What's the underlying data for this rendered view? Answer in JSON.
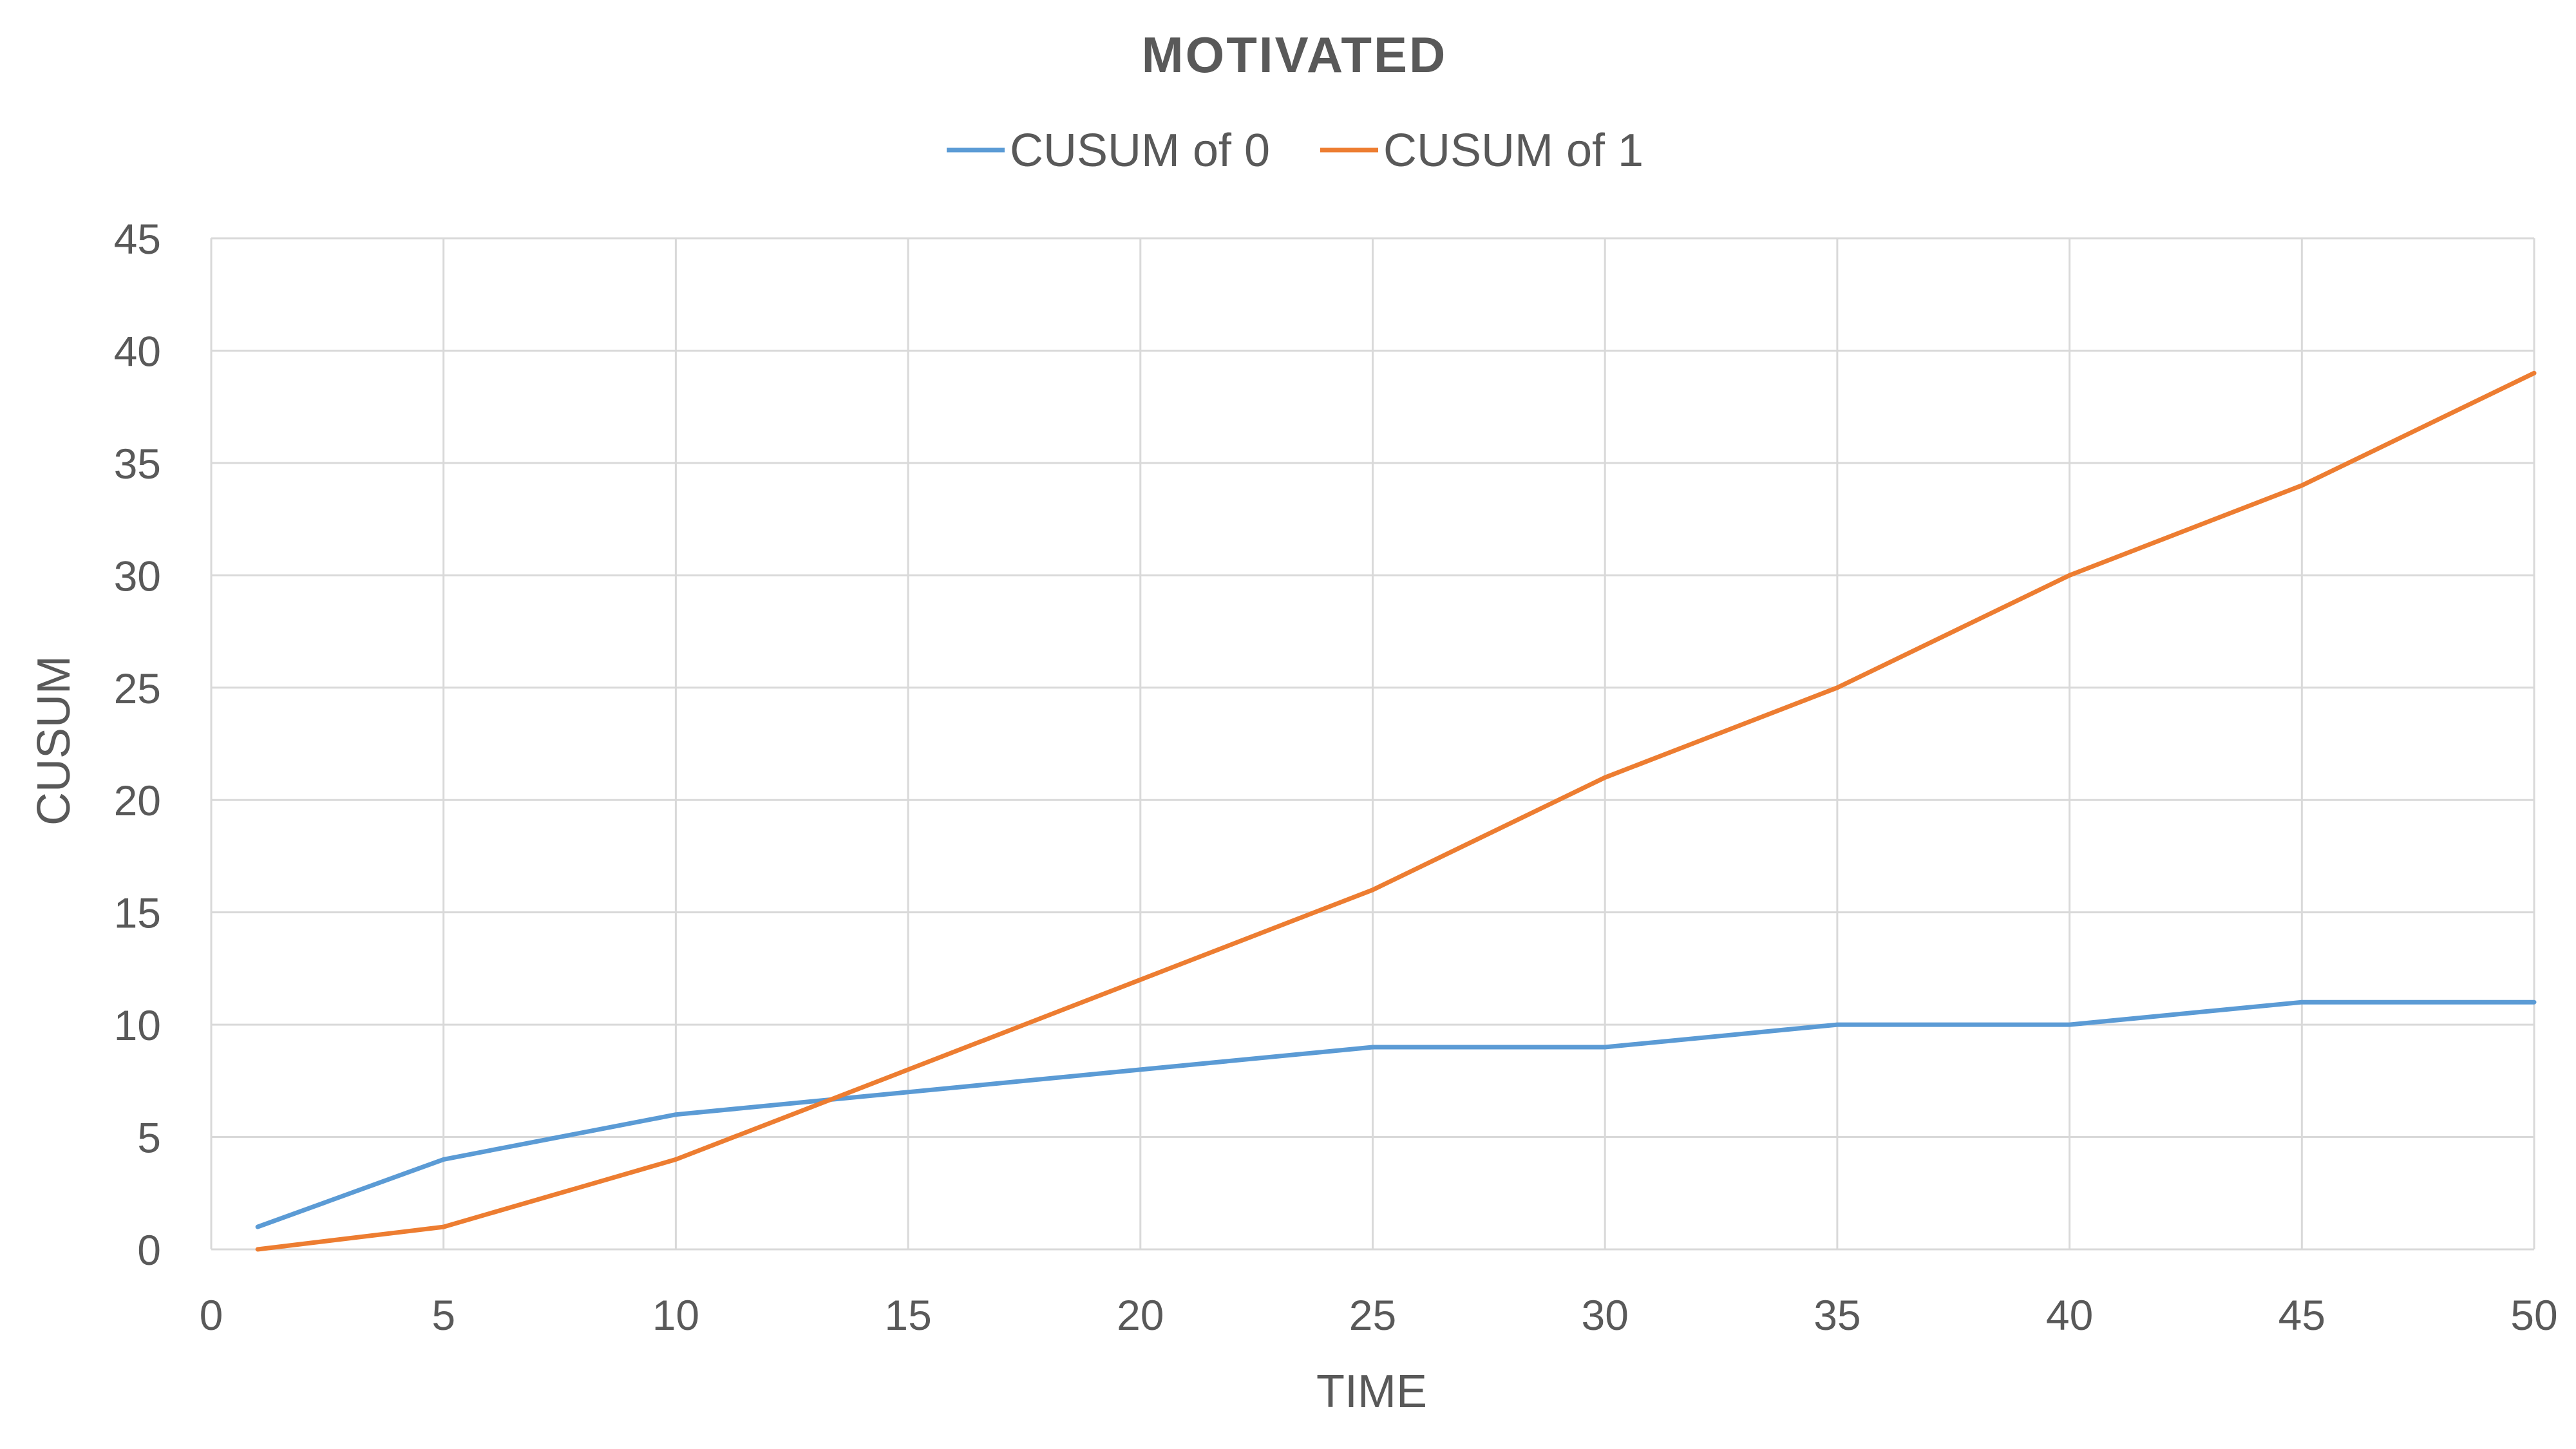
{
  "chart_data": {
    "type": "line",
    "title": "MOTIVATED",
    "xlabel": "TIME",
    "ylabel": "CUSUM",
    "xlim": [
      0,
      50
    ],
    "ylim": [
      0,
      45
    ],
    "x_ticks": [
      0,
      5,
      10,
      15,
      20,
      25,
      30,
      35,
      40,
      45,
      50
    ],
    "y_ticks": [
      0,
      5,
      10,
      15,
      20,
      25,
      30,
      35,
      40,
      45
    ],
    "grid": true,
    "legend_position": "top",
    "series": [
      {
        "name": "CUSUM of 0",
        "color": "#5b9bd5",
        "x": [
          1,
          5,
          10,
          15,
          20,
          25,
          30,
          35,
          40,
          45,
          50
        ],
        "y": [
          1,
          4,
          6,
          7,
          8,
          9,
          9,
          10,
          10,
          11,
          11
        ]
      },
      {
        "name": "CUSUM of 1",
        "color": "#ed7d31",
        "x": [
          1,
          5,
          10,
          15,
          20,
          25,
          30,
          35,
          40,
          45,
          50
        ],
        "y": [
          0,
          1,
          4,
          8,
          12,
          16,
          21,
          25,
          30,
          34,
          39
        ]
      }
    ]
  }
}
